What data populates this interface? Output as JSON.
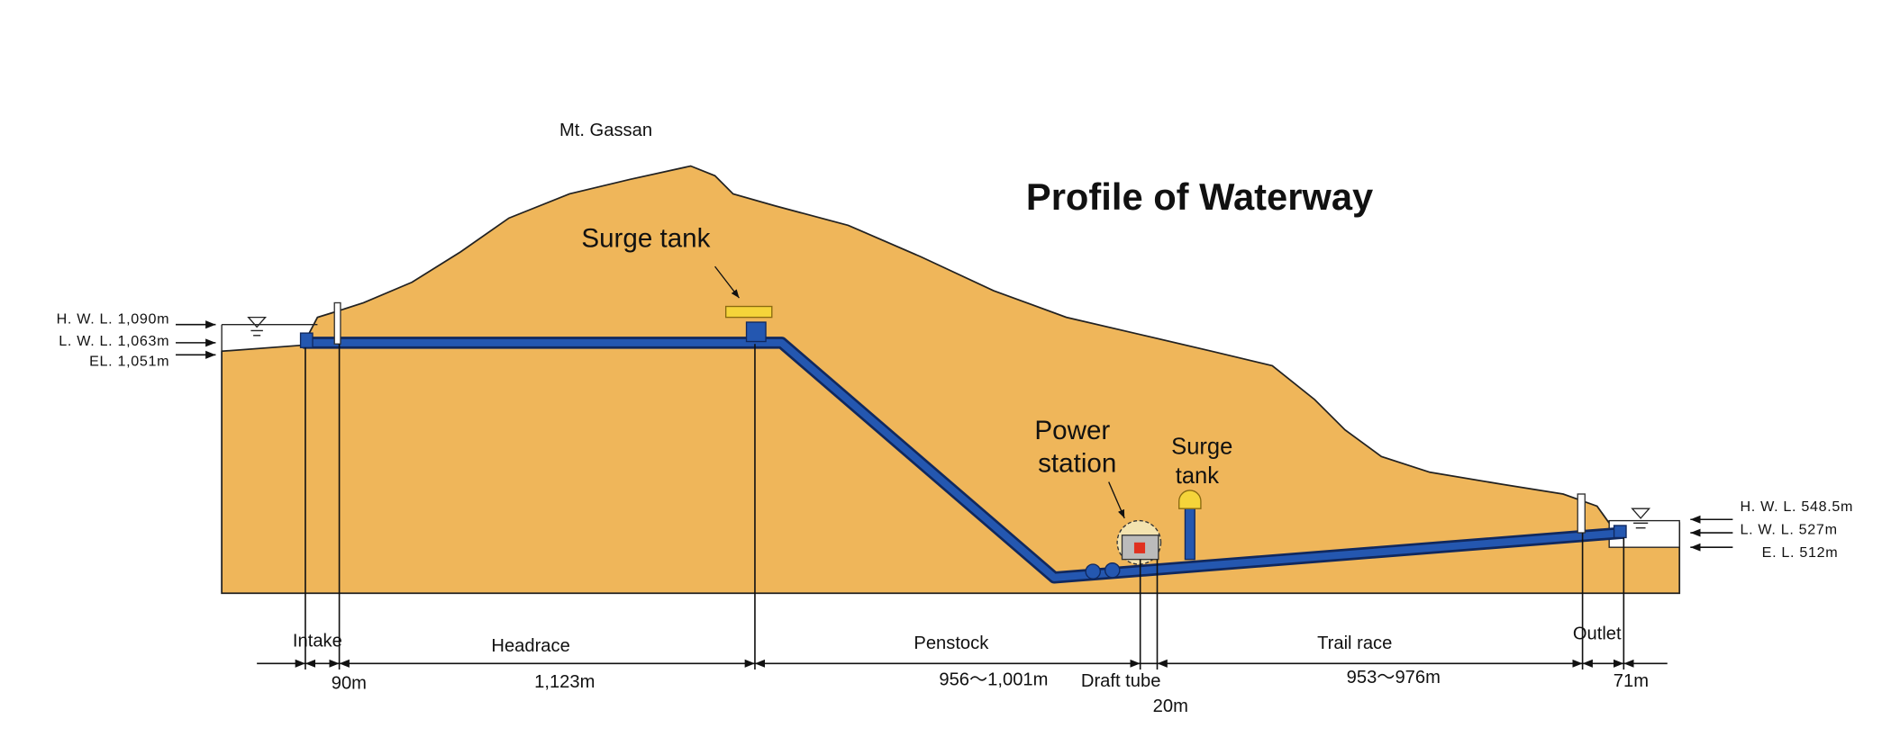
{
  "title": "Profile of Waterway",
  "mountain": "Mt. Gassan",
  "components": {
    "upper_surge_tank": "Surge tank",
    "power_station": [
      "Power",
      "station"
    ],
    "lower_surge_tank": [
      "Surge",
      "tank"
    ]
  },
  "levels_left": [
    "H. W. L. 1,090m",
    "L. W. L. 1,063m",
    "EL. 1,051m"
  ],
  "levels_right": [
    "H. W. L. 548.5m",
    "L. W. L. 527m",
    "E. L. 512m"
  ],
  "sections": {
    "intake": {
      "name": "Intake",
      "length": "90m"
    },
    "headrace": {
      "name": "Headrace",
      "length": "1,123m"
    },
    "penstock": {
      "name": "Penstock",
      "length": "956～1,001m"
    },
    "draft_tube": {
      "name": "Draft tube",
      "length": "20m"
    },
    "trail_race": {
      "name": "Trail race",
      "length": "953～976m"
    },
    "outlet": {
      "name": "Outlet",
      "length": "71m"
    }
  }
}
